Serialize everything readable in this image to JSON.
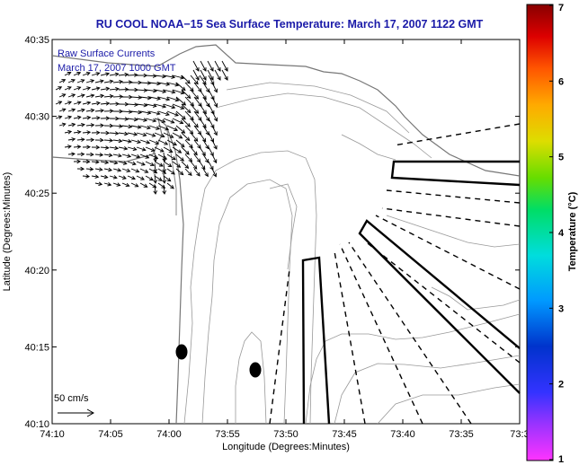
{
  "figure": {
    "title": "RU COOL  NOAA−15  Sea Surface Temperature:  March 17, 2007 1122 GMT",
    "inset_line1": "Raw Surface Currents",
    "inset_line2": "March 17, 2007 1000 GMT",
    "xlabel": "Longitude (Degrees:Minutes)",
    "ylabel": "Latitude (Degrees:Minutes)",
    "xticks": [
      "74:10",
      "74:05",
      "74:00",
      "73:55",
      "73:50",
      "73:45",
      "73:40",
      "73:35",
      "73:3"
    ],
    "yticks": [
      "40:35",
      "40:30",
      "40:25",
      "40:20",
      "40:15",
      "40:10"
    ],
    "scale_label": "50 cm/s",
    "colorbar_label": "Temperature (°C)",
    "colorbar_ticks": [
      "7",
      "6",
      "5",
      "4",
      "3",
      "2",
      "1"
    ]
  },
  "colors": {
    "title": "#1a1aa8",
    "coast": "#777777",
    "contour": "#999999",
    "line": "#000000"
  },
  "colorbar_range": [
    1,
    7
  ],
  "icons": [
    "vector-arrow-icon",
    "scale-arrow-icon",
    "station-marker-icon"
  ]
}
